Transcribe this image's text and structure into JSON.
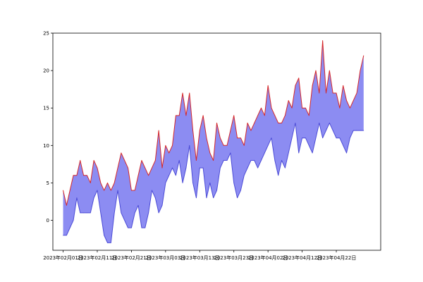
{
  "chart_data": {
    "type": "area",
    "title": "",
    "xlabel": "",
    "ylabel": "",
    "grid": false,
    "legend": "none",
    "x_range": [
      "2023-01-29",
      "2023-05-05"
    ],
    "ylim": [
      -4,
      25
    ],
    "y_ticks": [
      0,
      5,
      10,
      15,
      20,
      25
    ],
    "x_ticks": [
      {
        "date": "2023-02-01",
        "label": "2023年02月01日"
      },
      {
        "date": "2023-02-11",
        "label": "2023年02月11日"
      },
      {
        "date": "2023-02-21",
        "label": "2023年02月21日"
      },
      {
        "date": "2023-03-03",
        "label": "2023年03月03日"
      },
      {
        "date": "2023-03-13",
        "label": "2023年03月13日"
      },
      {
        "date": "2023-03-23",
        "label": "2023年03月23日"
      },
      {
        "date": "2023-04-02",
        "label": "2023年04月02日"
      },
      {
        "date": "2023-04-12",
        "label": "2023年04月12日"
      },
      {
        "date": "2023-04-22",
        "label": "2023年04月22日"
      }
    ],
    "colors": {
      "upper_line": "#d62728",
      "lower_line": "#4b4bd6",
      "fill": "#8c8cf2"
    },
    "x": [
      "2023-02-01",
      "2023-02-02",
      "2023-02-03",
      "2023-02-04",
      "2023-02-05",
      "2023-02-06",
      "2023-02-07",
      "2023-02-08",
      "2023-02-09",
      "2023-02-10",
      "2023-02-11",
      "2023-02-12",
      "2023-02-13",
      "2023-02-14",
      "2023-02-15",
      "2023-02-16",
      "2023-02-17",
      "2023-02-18",
      "2023-02-19",
      "2023-02-20",
      "2023-02-21",
      "2023-02-22",
      "2023-02-23",
      "2023-02-24",
      "2023-02-25",
      "2023-02-26",
      "2023-02-27",
      "2023-02-28",
      "2023-03-01",
      "2023-03-02",
      "2023-03-03",
      "2023-03-04",
      "2023-03-05",
      "2023-03-06",
      "2023-03-07",
      "2023-03-08",
      "2023-03-09",
      "2023-03-10",
      "2023-03-11",
      "2023-03-12",
      "2023-03-13",
      "2023-03-14",
      "2023-03-15",
      "2023-03-16",
      "2023-03-17",
      "2023-03-18",
      "2023-03-19",
      "2023-03-20",
      "2023-03-21",
      "2023-03-22",
      "2023-03-23",
      "2023-03-24",
      "2023-03-25",
      "2023-03-26",
      "2023-03-27",
      "2023-03-28",
      "2023-03-29",
      "2023-03-30",
      "2023-03-31",
      "2023-04-01",
      "2023-04-02",
      "2023-04-03",
      "2023-04-04",
      "2023-04-05",
      "2023-04-06",
      "2023-04-07",
      "2023-04-08",
      "2023-04-09",
      "2023-04-10",
      "2023-04-11",
      "2023-04-12",
      "2023-04-13",
      "2023-04-14",
      "2023-04-15",
      "2023-04-16",
      "2023-04-17",
      "2023-04-18",
      "2023-04-19",
      "2023-04-20",
      "2023-04-21",
      "2023-04-22",
      "2023-04-23",
      "2023-04-24",
      "2023-04-25",
      "2023-04-26",
      "2023-04-27",
      "2023-04-28",
      "2023-04-29",
      "2023-04-30"
    ],
    "series": [
      {
        "values": [
          4,
          2,
          4,
          6,
          6,
          8,
          6,
          6,
          5,
          8,
          7,
          5,
          4,
          5,
          4,
          5,
          7,
          9,
          8,
          7,
          4,
          4,
          6,
          8,
          7,
          6,
          7,
          8,
          12,
          7,
          10,
          9,
          10,
          14,
          14,
          17,
          14,
          17,
          12,
          8,
          12,
          14,
          11,
          9,
          8,
          13,
          11,
          10,
          10,
          12,
          14,
          11,
          11,
          10,
          13,
          12,
          13,
          14,
          15,
          14,
          18,
          15,
          14,
          13,
          13,
          14,
          16,
          15,
          18,
          19,
          15,
          15,
          14,
          18,
          20,
          17,
          24,
          17,
          20,
          17,
          17,
          15,
          18,
          16,
          15,
          16,
          17,
          20,
          22
        ]
      },
      {
        "values": [
          -2,
          -2,
          -1,
          0,
          3,
          1,
          1,
          1,
          1,
          3,
          4,
          1,
          -2,
          -3,
          -3,
          1,
          4,
          1,
          0,
          -1,
          -1,
          1,
          2,
          -1,
          -1,
          1,
          4,
          3,
          1,
          2,
          5,
          6,
          7,
          6,
          8,
          5,
          7,
          10,
          5,
          3,
          7,
          7,
          3,
          5,
          3,
          4,
          7,
          8,
          8,
          9,
          5,
          3,
          4,
          6,
          7,
          8,
          8,
          7,
          8,
          9,
          10,
          11,
          8,
          6,
          8,
          7,
          9,
          11,
          13,
          9,
          11,
          11,
          10,
          9,
          11,
          13,
          11,
          12,
          13,
          12,
          11,
          11,
          10,
          9,
          11,
          12,
          12,
          12,
          12
        ]
      }
    ]
  }
}
